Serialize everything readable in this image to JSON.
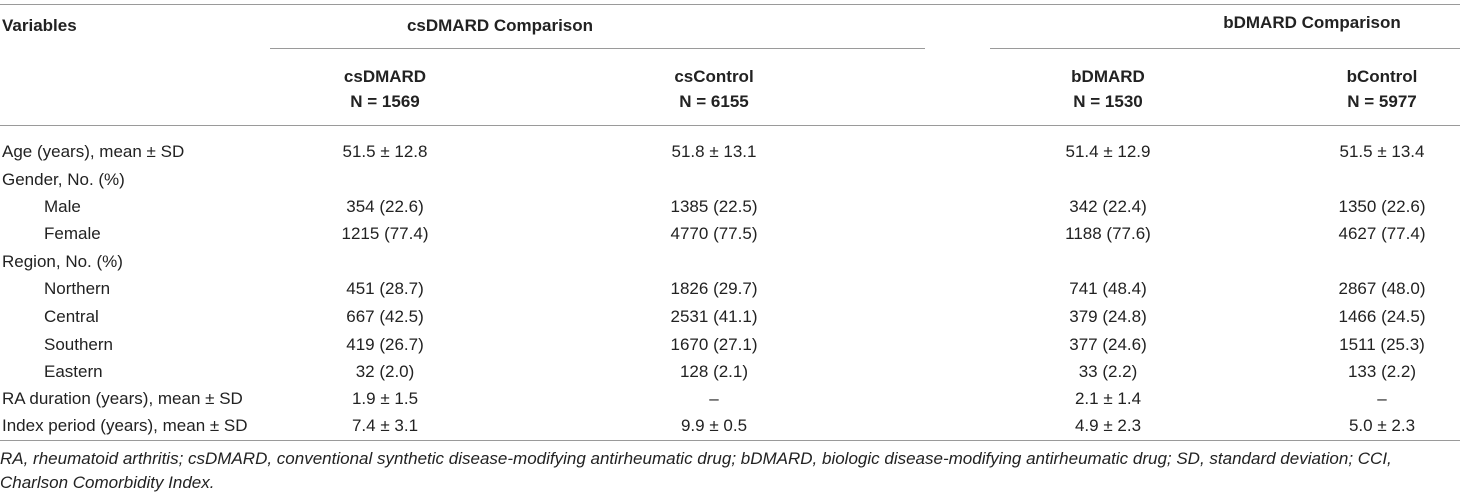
{
  "header": {
    "variables": "Variables",
    "cs_group": "csDMARD Comparison",
    "b_group": "bDMARD Comparison",
    "columns": [
      {
        "name": "csDMARD",
        "n": "N = 1569"
      },
      {
        "name": "csControl",
        "n": "N = 6155"
      },
      {
        "name": "bDMARD",
        "n": "N = 1530"
      },
      {
        "name": "bControl",
        "n": "N = 5977"
      }
    ]
  },
  "rows": [
    {
      "label": "Age (years), mean ± SD",
      "values": [
        "51.5 ± 12.8",
        "51.8 ± 13.1",
        "51.4 ± 12.9",
        "51.5 ± 13.4"
      ]
    },
    {
      "label": "Gender, No. (%)",
      "values": [
        "",
        "",
        "",
        ""
      ]
    },
    {
      "label": "Male",
      "values": [
        "354 (22.6)",
        "1385 (22.5)",
        "342 (22.4)",
        "1350 (22.6)"
      ]
    },
    {
      "label": "Female",
      "values": [
        "1215 (77.4)",
        "4770 (77.5)",
        "1188 (77.6)",
        "4627 (77.4)"
      ]
    },
    {
      "label": "Region, No. (%)",
      "values": [
        "",
        "",
        "",
        ""
      ]
    },
    {
      "label": "Northern",
      "values": [
        "451 (28.7)",
        "1826 (29.7)",
        "741 (48.4)",
        "2867 (48.0)"
      ]
    },
    {
      "label": "Central",
      "values": [
        "667 (42.5)",
        "2531 (41.1)",
        "379 (24.8)",
        "1466 (24.5)"
      ]
    },
    {
      "label": "Southern",
      "values": [
        "419 (26.7)",
        "1670 (27.1)",
        "377 (24.6)",
        "1511 (25.3)"
      ]
    },
    {
      "label": "Eastern",
      "values": [
        "32 (2.0)",
        "128 (2.1)",
        "33 (2.2)",
        "133 (2.2)"
      ]
    },
    {
      "label": "RA duration (years), mean ± SD",
      "values": [
        "1.9 ± 1.5",
        "–",
        "2.1 ± 1.4",
        "–"
      ]
    },
    {
      "label": "Index period (years), mean ± SD",
      "values": [
        "7.4 ± 3.1",
        "9.9 ± 0.5",
        "4.9 ± 2.3",
        "5.0 ± 2.3"
      ]
    }
  ],
  "footnote": "RA, rheumatoid arthritis; csDMARD, conventional synthetic disease-modifying antirheumatic drug; bDMARD, biologic disease-modifying antirheumatic drug; SD, standard deviation; CCI, Charlson Comorbidity Index."
}
